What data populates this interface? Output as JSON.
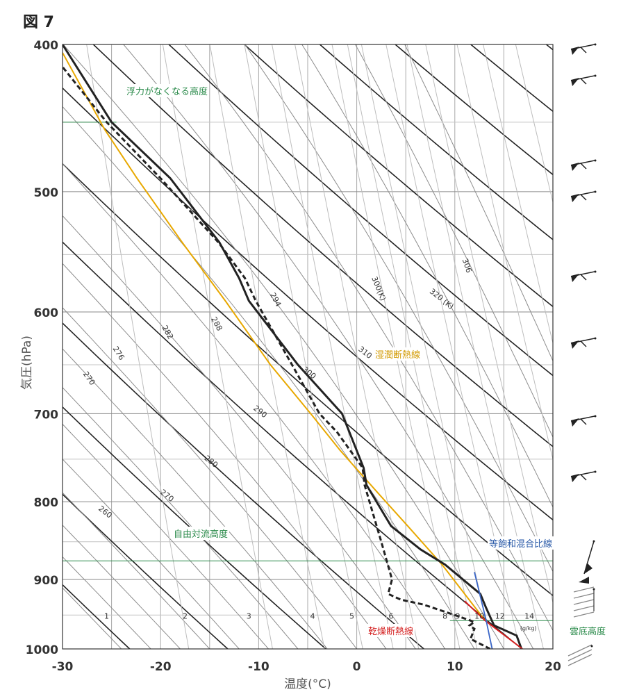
{
  "figure_title": "図 7",
  "chart_data": {
    "type": "line",
    "subtype": "emagram",
    "xlabel": "温度(°C)",
    "ylabel": "気圧(hPa)",
    "xlim": [
      -30,
      20
    ],
    "ylim": [
      1000,
      400
    ],
    "y_scale": "log",
    "grid": true,
    "x_ticks": [
      -30,
      -20,
      -10,
      0,
      10,
      20
    ],
    "x_tick_labels": [
      "-30",
      "-20",
      "-10",
      "0",
      "10",
      "20"
    ],
    "y_ticks": [
      400,
      500,
      600,
      700,
      800,
      900,
      1000
    ],
    "y_tick_labels": [
      "400",
      "500",
      "600",
      "700",
      "800",
      "900",
      "1000"
    ],
    "temperature": [
      [
        16.8,
        1000
      ],
      [
        16.3,
        980
      ],
      [
        14.0,
        965
      ],
      [
        13.2,
        940
      ],
      [
        12.6,
        920
      ],
      [
        9.0,
        880
      ],
      [
        6.5,
        860
      ],
      [
        3.5,
        830
      ],
      [
        1.0,
        780
      ],
      [
        0.7,
        760
      ],
      [
        -1.5,
        700
      ],
      [
        -6,
        650
      ],
      [
        -11,
        590
      ],
      [
        -12,
        570
      ],
      [
        -14,
        540
      ],
      [
        -19,
        490
      ],
      [
        -25,
        450
      ],
      [
        -30,
        400
      ]
    ],
    "dewpoint": [
      [
        13.6,
        1000
      ],
      [
        11.6,
        985
      ],
      [
        12.0,
        970
      ],
      [
        11.5,
        965
      ],
      [
        12.0,
        960
      ],
      [
        10.0,
        950
      ],
      [
        6.8,
        935
      ],
      [
        4.5,
        928
      ],
      [
        3.2,
        920
      ],
      [
        3.6,
        900
      ],
      [
        2.5,
        850
      ],
      [
        0.8,
        780
      ],
      [
        0.6,
        760
      ],
      [
        -2,
        720
      ],
      [
        -3.8,
        700
      ],
      [
        -6.6,
        650
      ],
      [
        -10.3,
        590
      ],
      [
        -11.4,
        570
      ],
      [
        -14.1,
        540
      ],
      [
        -20,
        490
      ],
      [
        -25.5,
        450
      ],
      [
        -30.5,
        410
      ]
    ],
    "moist_adiabat_parcel": [
      [
        13.1,
        958
      ],
      [
        8.7,
        880
      ],
      [
        5.2,
        830
      ],
      [
        2.2,
        790
      ],
      [
        -1.7,
        740
      ],
      [
        -4.7,
        700
      ],
      [
        -8.8,
        650
      ],
      [
        -13.4,
        590
      ],
      [
        -17.8,
        540
      ],
      [
        -22.4,
        490
      ],
      [
        -25.7,
        455
      ],
      [
        -30,
        405
      ]
    ],
    "dry_adiabat_parcel": [
      [
        16.9,
        1000
      ],
      [
        13.1,
        958
      ],
      [
        11.0,
        930
      ]
    ],
    "mixing_ratio_line": [
      [
        13.8,
        1000
      ],
      [
        13.2,
        958
      ],
      [
        12.0,
        890
      ]
    ],
    "mixing_ratio_labels": [
      "1",
      "2",
      "3",
      "4",
      "5",
      "6",
      "8",
      "9",
      "10",
      "12",
      "14",
      "(g/kg)"
    ],
    "dry_adiabat_labels": [
      "260",
      "270",
      "280",
      "290",
      "300",
      "310",
      "320 (K)"
    ],
    "moist_adiabat_labels": [
      "270",
      "276",
      "282",
      "288",
      "294",
      "300(K)",
      "306"
    ],
    "lcl_pressure": 958,
    "lfc_pressure": 875,
    "el_pressure": 450,
    "annotations": {
      "el": "浮力がなくなる高度",
      "moist_adiabat": "湿潤断熱線",
      "lfc": "自由対流高度",
      "mixing_ratio": "等飽和混合比線",
      "dry_adiabat": "乾燥断熱線",
      "lcl": "雲底高度"
    },
    "colors": {
      "temperature": "#222222",
      "dewpoint": "#222222",
      "moist_adiabat": "#e8a800",
      "dry_adiabat": "#d42020",
      "mixing_ratio": "#3a66c8",
      "level_line": "#2a8a4a",
      "grid": "#9a9a9a"
    },
    "wind_barbs_count": 11
  }
}
